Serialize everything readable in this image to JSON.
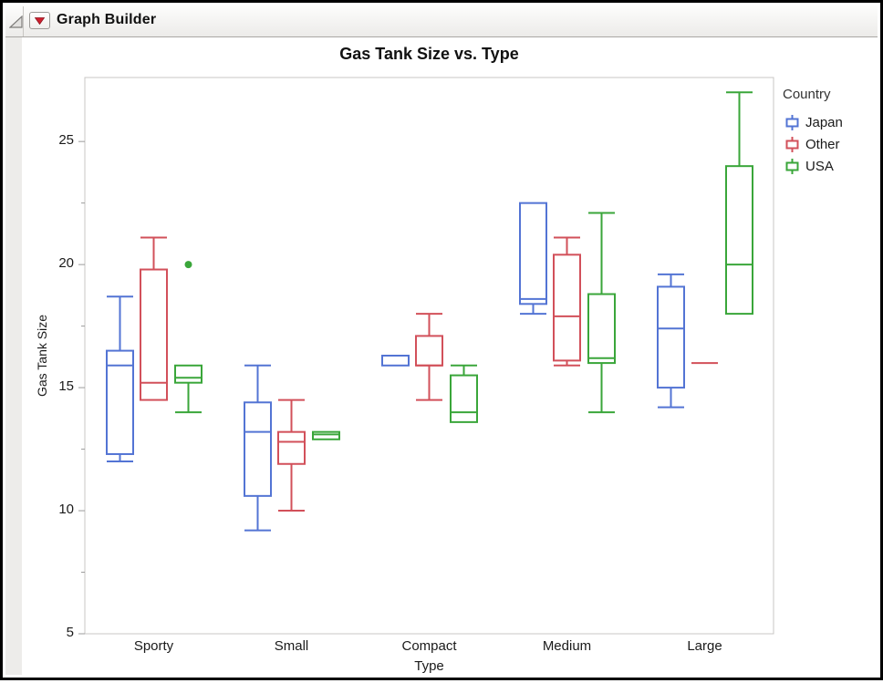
{
  "window": {
    "title": "Graph Builder"
  },
  "chart": {
    "title": "Gas Tank Size vs. Type",
    "x_axis": {
      "label": "Type"
    },
    "y_axis": {
      "label": "Gas Tank Size"
    },
    "legend": {
      "title": "Country"
    }
  },
  "chart_data": {
    "type": "boxplot",
    "title": "Gas Tank Size vs. Type",
    "xlabel": "Type",
    "ylabel": "Gas Tank Size",
    "categories": [
      "Sporty",
      "Small",
      "Compact",
      "Medium",
      "Large"
    ],
    "y_ticks": [
      5,
      10,
      15,
      20,
      25
    ],
    "y_minor_ticks": [
      7.5,
      12.5,
      17.5,
      22.5
    ],
    "ylim": [
      5,
      27.6
    ],
    "grid": false,
    "legend_title": "Country",
    "legend_position": "right",
    "frame_color": "#c9c7c5",
    "tick_color": "#9b9b9b",
    "series": [
      {
        "name": "Japan",
        "color": "#5374d4",
        "offset": -37,
        "boxes": [
          {
            "category": "Sporty",
            "min": 12.0,
            "q1": 12.3,
            "median": 15.9,
            "q3": 16.5,
            "max": 18.7
          },
          {
            "category": "Small",
            "min": 9.2,
            "q1": 10.6,
            "median": 13.2,
            "q3": 14.4,
            "max": 15.9
          },
          {
            "category": "Compact",
            "min": 15.9,
            "q1": 15.9,
            "median": 16.3,
            "q3": 16.3,
            "max": 16.3
          },
          {
            "category": "Medium",
            "min": 18.0,
            "q1": 18.4,
            "median": 18.6,
            "q3": 22.5,
            "max": 22.5
          },
          {
            "category": "Large",
            "min": 14.2,
            "q1": 15.0,
            "median": 17.4,
            "q3": 19.1,
            "max": 19.6
          }
        ]
      },
      {
        "name": "Other",
        "color": "#d2505a",
        "offset": 0,
        "boxes": [
          {
            "category": "Sporty",
            "min": 14.5,
            "q1": 14.5,
            "median": 15.2,
            "q3": 19.8,
            "max": 21.1
          },
          {
            "category": "Small",
            "min": 10.0,
            "q1": 11.9,
            "median": 12.8,
            "q3": 13.2,
            "max": 14.5
          },
          {
            "category": "Compact",
            "min": 14.5,
            "q1": 15.9,
            "median": 15.9,
            "q3": 17.1,
            "max": 18.0
          },
          {
            "category": "Medium",
            "min": 15.9,
            "q1": 16.1,
            "median": 17.9,
            "q3": 20.4,
            "max": 21.1
          },
          {
            "category": "Large",
            "min": 16.0,
            "q1": 16.0,
            "median": 16.0,
            "q3": 16.0,
            "max": 16.0
          }
        ]
      },
      {
        "name": "USA",
        "color": "#3aa63a",
        "offset": 38,
        "boxes": [
          {
            "category": "Sporty",
            "min": 14.0,
            "q1": 15.2,
            "median": 15.4,
            "q3": 15.9,
            "max": 15.9
          },
          {
            "category": "Small",
            "min": 12.9,
            "q1": 12.9,
            "median": 13.1,
            "q3": 13.2,
            "max": 13.2
          },
          {
            "category": "Compact",
            "min": 13.6,
            "q1": 13.6,
            "median": 14.0,
            "q3": 15.5,
            "max": 15.9
          },
          {
            "category": "Medium",
            "min": 14.0,
            "q1": 16.0,
            "median": 16.2,
            "q3": 18.8,
            "max": 22.1
          },
          {
            "category": "Large",
            "min": 18.0,
            "q1": 18.0,
            "median": 20.0,
            "q3": 24.0,
            "max": 27.0
          }
        ]
      }
    ],
    "outliers": [
      {
        "series": "USA",
        "category": "Sporty",
        "value": 20.0
      }
    ]
  }
}
